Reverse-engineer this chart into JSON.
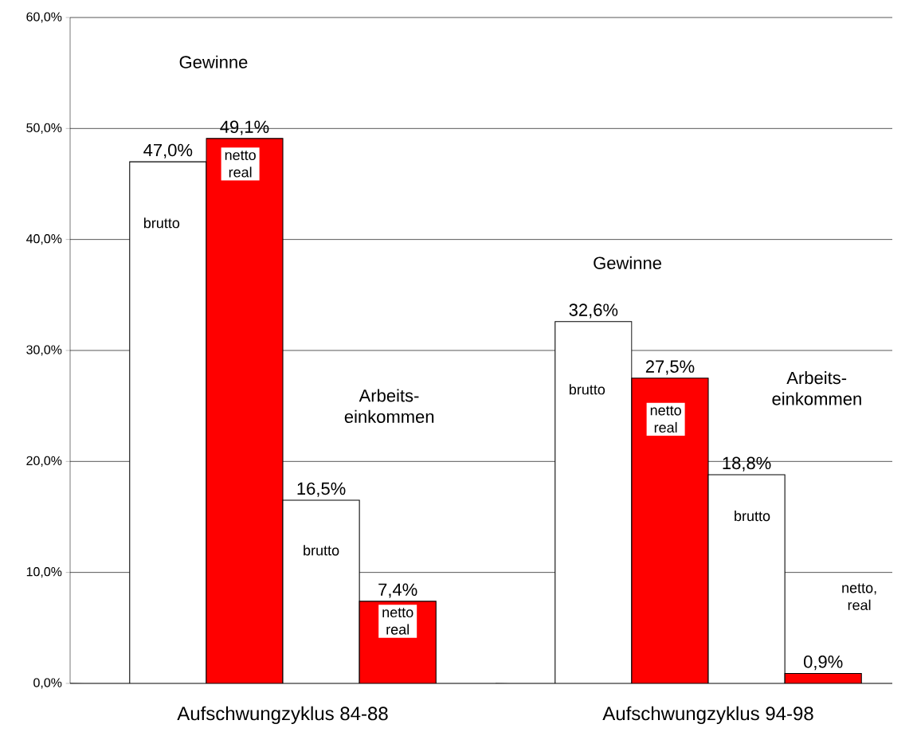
{
  "chart_data": {
    "type": "bar",
    "categories": [
      "Aufschwungzyklus 84-88",
      "Aufschwungzyklus 94-98"
    ],
    "series": [
      {
        "color": "#ffffff",
        "values": [
          47.0,
          32.6
        ],
        "value_labels": [
          "47,0%",
          "32,6%"
        ]
      },
      {
        "color": "#ff0000",
        "values": [
          49.1,
          27.5
        ],
        "value_labels": [
          "49,1%",
          "27,5%"
        ]
      },
      {
        "color": "#ffffff",
        "values": [
          16.5,
          18.8
        ],
        "value_labels": [
          "16,5%",
          "18,8%"
        ]
      },
      {
        "color": "#ff0000",
        "values": [
          7.4,
          0.9
        ],
        "value_labels": [
          "7,4%",
          "0,9%"
        ]
      }
    ],
    "ylim": [
      0,
      60
    ],
    "yticks": [
      {
        "value": 0,
        "label": "0,0%"
      },
      {
        "value": 10,
        "label": "10,0%"
      },
      {
        "value": 20,
        "label": "20,0%"
      },
      {
        "value": 30,
        "label": "30,0%"
      },
      {
        "value": 40,
        "label": "40,0%"
      },
      {
        "value": 50,
        "label": "50,0%"
      },
      {
        "value": 60,
        "label": "60,0%"
      }
    ],
    "grid": "y",
    "annotations": [
      "Gewinne",
      "brutto",
      "netto real",
      "Arbeits- einkommen",
      "brutto",
      "netto real",
      "Gewinne",
      "brutto",
      "netto real",
      "Arbeits- einkommen",
      "brutto",
      "netto, real"
    ]
  }
}
